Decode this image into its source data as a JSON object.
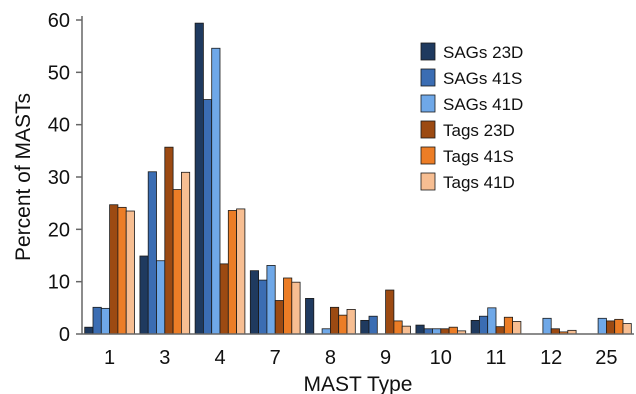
{
  "chart_data": {
    "type": "bar",
    "xlabel": "MAST Type",
    "ylabel": "Percent of MASTs",
    "ylim": [
      0,
      60
    ],
    "yticks": [
      0,
      10,
      20,
      30,
      40,
      50,
      60
    ],
    "grid": false,
    "legend_position": "top-right",
    "categories": [
      "1",
      "3",
      "4",
      "7",
      "8",
      "9",
      "10",
      "11",
      "12",
      "25"
    ],
    "series": [
      {
        "name": "SAGs 23D",
        "color": "#1f3a5f",
        "values": [
          1.3,
          14.9,
          59.4,
          12.1,
          6.8,
          2.6,
          1.7,
          2.6,
          0,
          0
        ]
      },
      {
        "name": "SAGs 41S",
        "color": "#3b6db3",
        "values": [
          5.1,
          31.0,
          44.8,
          10.3,
          0,
          3.4,
          1.0,
          3.4,
          0,
          0
        ]
      },
      {
        "name": "SAGs 41D",
        "color": "#6fa8e8",
        "values": [
          4.9,
          14.0,
          54.6,
          13.1,
          1.0,
          0,
          1.0,
          5.0,
          3.0,
          3.0
        ]
      },
      {
        "name": "Tags 23D",
        "color": "#9c4a12",
        "values": [
          24.7,
          35.7,
          13.4,
          6.4,
          5.1,
          8.4,
          1.0,
          1.4,
          1.0,
          2.5
        ]
      },
      {
        "name": "Tags 41S",
        "color": "#ec7d26",
        "values": [
          24.2,
          27.6,
          23.6,
          10.7,
          3.6,
          2.5,
          1.3,
          3.2,
          0.4,
          2.8
        ]
      },
      {
        "name": "Tags 41D",
        "color": "#f7be92",
        "values": [
          23.5,
          30.9,
          23.9,
          9.9,
          4.7,
          1.5,
          0.6,
          2.4,
          0.7,
          2.0
        ]
      }
    ]
  }
}
